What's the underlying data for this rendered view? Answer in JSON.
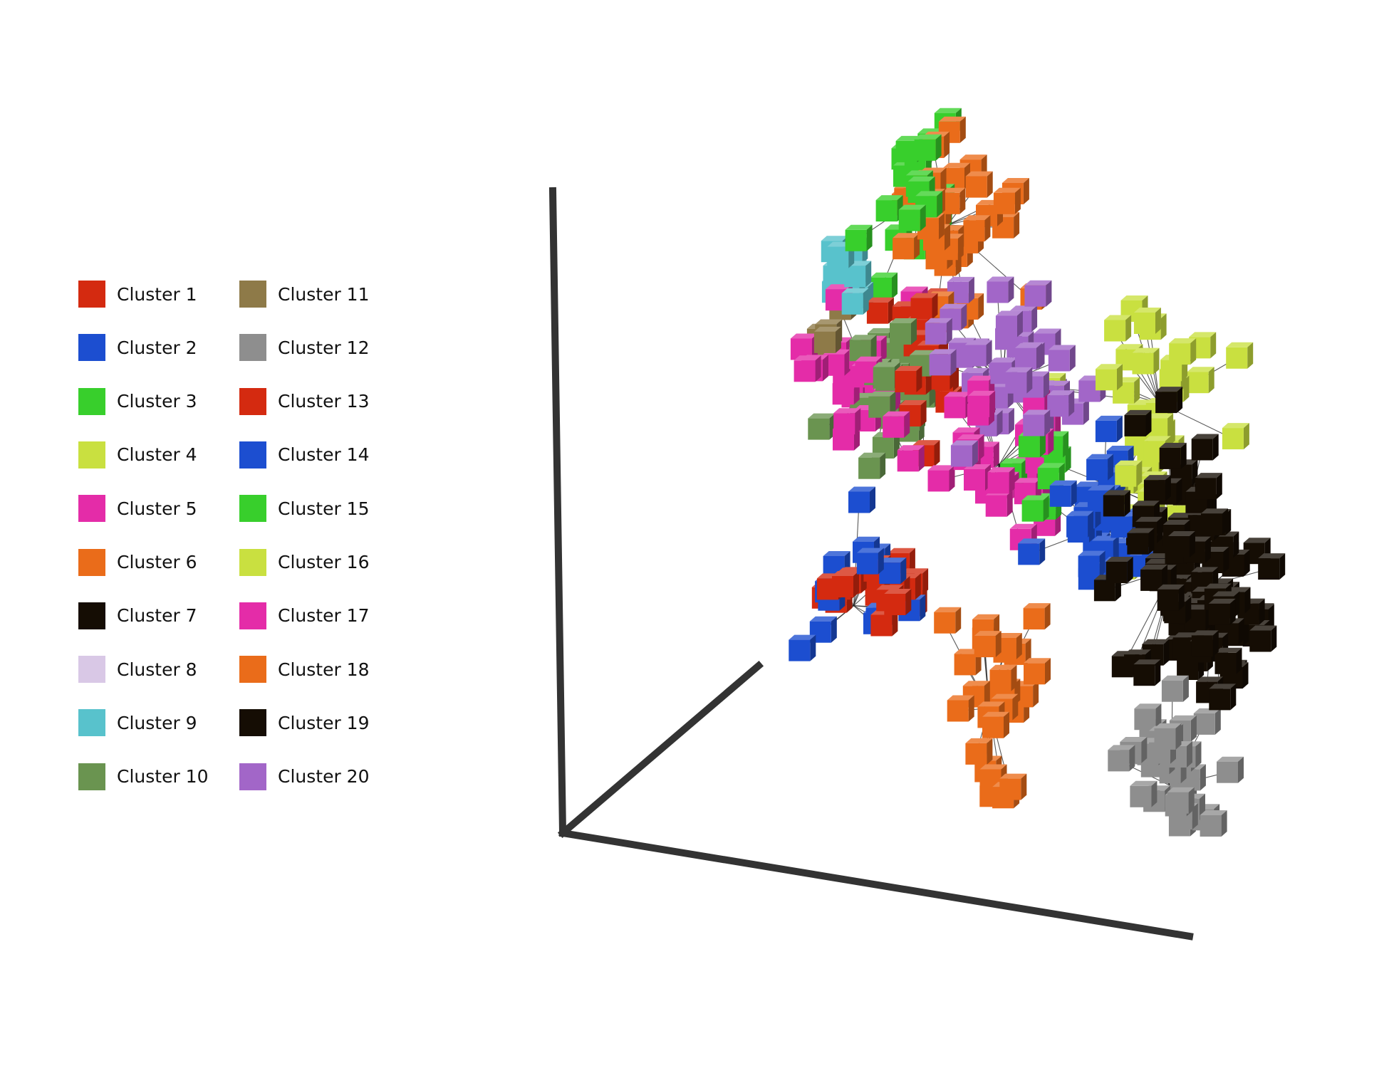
{
  "chart_data": {
    "type": "scatter",
    "title": "",
    "xlabel": "",
    "ylabel": "",
    "zlabel": "",
    "projection": "3d",
    "marker": "cube",
    "grid": false,
    "legend": {
      "placement": "left",
      "columns": 2
    },
    "series": [
      {
        "name": "Cluster 1",
        "color": "#d42a10"
      },
      {
        "name": "Cluster 2",
        "color": "#1c4ed0"
      },
      {
        "name": "Cluster 3",
        "color": "#38cf2c"
      },
      {
        "name": "Cluster 4",
        "color": "#c9e040"
      },
      {
        "name": "Cluster 5",
        "color": "#e42ca8"
      },
      {
        "name": "Cluster 6",
        "color": "#ea6c1a"
      },
      {
        "name": "Cluster 7",
        "color": "#150d04"
      },
      {
        "name": "Cluster 8",
        "color": "#d9c8e6"
      },
      {
        "name": "Cluster 9",
        "color": "#58c2cc"
      },
      {
        "name": "Cluster 10",
        "color": "#6a9450"
      },
      {
        "name": "Cluster 11",
        "color": "#8e7a48"
      },
      {
        "name": "Cluster 12",
        "color": "#8e8e8e"
      },
      {
        "name": "Cluster 13",
        "color": "#d42a10"
      },
      {
        "name": "Cluster 14",
        "color": "#1c4ed0"
      },
      {
        "name": "Cluster 15",
        "color": "#38cf2c"
      },
      {
        "name": "Cluster 16",
        "color": "#c9e040"
      },
      {
        "name": "Cluster 17",
        "color": "#e42ca8"
      },
      {
        "name": "Cluster 18",
        "color": "#ea6c1a"
      },
      {
        "name": "Cluster 19",
        "color": "#150d04"
      },
      {
        "name": "Cluster 20",
        "color": "#a266c8"
      }
    ],
    "groups": [
      {
        "cluster": "Cluster 3",
        "count": 22,
        "center": [
          4.3,
          5.7,
          8.6
        ],
        "spread": [
          0.6,
          0.4,
          0.8
        ]
      },
      {
        "cluster": "Cluster 6",
        "count": 32,
        "center": [
          4.9,
          5.6,
          8.3
        ],
        "spread": [
          0.8,
          0.4,
          1.0
        ]
      },
      {
        "cluster": "Cluster 9",
        "count": 10,
        "center": [
          3.0,
          5.7,
          7.2
        ],
        "spread": [
          0.3,
          0.3,
          0.5
        ]
      },
      {
        "cluster": "Cluster 5",
        "count": 24,
        "center": [
          3.3,
          5.5,
          5.9
        ],
        "spread": [
          0.6,
          0.4,
          0.8
        ]
      },
      {
        "cluster": "Cluster 11",
        "count": 5,
        "center": [
          2.7,
          5.6,
          6.0
        ],
        "spread": [
          0.3,
          0.3,
          0.6
        ]
      },
      {
        "cluster": "Cluster 10",
        "count": 30,
        "center": [
          3.8,
          5.5,
          5.5
        ],
        "spread": [
          0.6,
          0.4,
          0.8
        ]
      },
      {
        "cluster": "Cluster 13",
        "count": 22,
        "center": [
          4.4,
          5.6,
          6.3
        ],
        "spread": [
          0.4,
          0.3,
          0.7
        ]
      },
      {
        "cluster": "Cluster 1",
        "count": 24,
        "center": [
          3.8,
          4.4,
          3.0
        ],
        "spread": [
          0.5,
          0.3,
          0.5
        ]
      },
      {
        "cluster": "Cluster 2",
        "count": 14,
        "center": [
          3.7,
          4.1,
          2.7
        ],
        "spread": [
          0.7,
          0.5,
          0.7
        ]
      },
      {
        "cluster": "Cluster 20",
        "count": 40,
        "center": [
          6.2,
          5.0,
          6.2
        ],
        "spread": [
          1.0,
          0.4,
          0.9
        ]
      },
      {
        "cluster": "Cluster 17",
        "count": 28,
        "center": [
          6.2,
          4.8,
          5.0
        ],
        "spread": [
          0.9,
          0.4,
          0.8
        ]
      },
      {
        "cluster": "Cluster 15",
        "count": 8,
        "center": [
          7.0,
          4.8,
          4.6
        ],
        "spread": [
          0.5,
          0.3,
          0.5
        ]
      },
      {
        "cluster": "Cluster 4",
        "count": 28,
        "center": [
          9.2,
          5.0,
          6.3
        ],
        "spread": [
          0.9,
          0.4,
          1.1
        ]
      },
      {
        "cluster": "Cluster 16",
        "count": 12,
        "center": [
          8.6,
          4.8,
          4.9
        ],
        "spread": [
          0.6,
          0.3,
          0.6
        ]
      },
      {
        "cluster": "Cluster 14",
        "count": 26,
        "center": [
          8.4,
          4.3,
          4.5
        ],
        "spread": [
          0.6,
          0.3,
          0.8
        ]
      },
      {
        "cluster": "Cluster 7",
        "count": 60,
        "center": [
          10.1,
          3.6,
          4.3
        ],
        "spread": [
          0.8,
          0.5,
          1.2
        ]
      },
      {
        "cluster": "Cluster 19",
        "count": 40,
        "center": [
          10.9,
          3.5,
          4.2
        ],
        "spread": [
          0.6,
          0.5,
          1.0
        ]
      },
      {
        "cluster": "Cluster 12",
        "count": 38,
        "center": [
          10.6,
          2.3,
          1.4
        ],
        "spread": [
          0.6,
          0.6,
          0.9
        ]
      },
      {
        "cluster": "Cluster 18",
        "count": 26,
        "center": [
          6.7,
          3.2,
          1.8
        ],
        "spread": [
          0.5,
          0.4,
          0.9
        ]
      },
      {
        "cluster": "Cluster 8",
        "count": 0,
        "center": [
          6.0,
          5.0,
          5.0
        ],
        "spread": [
          0.1,
          0.1,
          0.1
        ]
      }
    ],
    "xlim": [
      0,
      12
    ],
    "ylim": [
      0,
      8
    ],
    "zlim": [
      0,
      10
    ]
  }
}
